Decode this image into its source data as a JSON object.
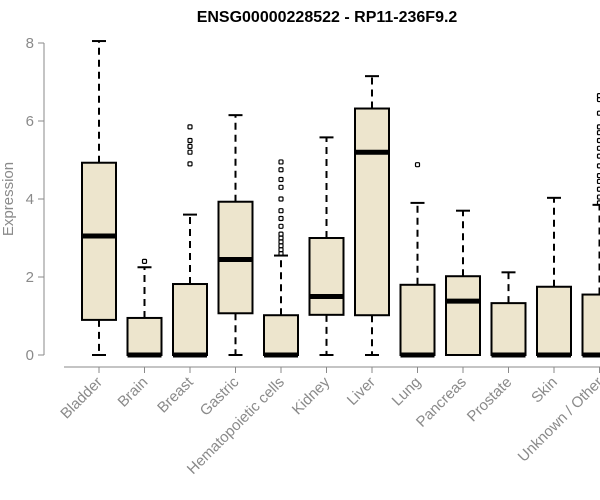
{
  "chart_data": {
    "type": "boxplot",
    "title": "ENSG00000228522 - RP11-236F9.2",
    "xlabel": "",
    "ylabel": "Expression",
    "ylim": [
      0,
      8
    ],
    "yticks": [
      0,
      2,
      4,
      6,
      8
    ],
    "grid": false,
    "categories": [
      "Bladder",
      "Brain",
      "Breast",
      "Gastric",
      "Hematopoietic cells",
      "Kidney",
      "Liver",
      "Lung",
      "Pancreas",
      "Prostate",
      "Skin",
      "Unknown / Other"
    ],
    "boxes": [
      {
        "min": 0,
        "q1": 0.9,
        "median": 3.05,
        "q3": 4.93,
        "max": 8.05,
        "outliers": []
      },
      {
        "min": 0,
        "q1": 0,
        "median": 0,
        "q3": 0.95,
        "max": 2.25,
        "outliers": [
          2.4
        ]
      },
      {
        "min": 0,
        "q1": 0,
        "median": 0,
        "q3": 1.82,
        "max": 3.6,
        "outliers": [
          4.9,
          5.2,
          5.35,
          5.5,
          5.85
        ]
      },
      {
        "min": 0,
        "q1": 1.07,
        "median": 2.45,
        "q3": 3.93,
        "max": 6.15,
        "outliers": []
      },
      {
        "min": 0,
        "q1": 0,
        "median": 0,
        "q3": 1.02,
        "max": 2.55,
        "outliers": [
          2.6,
          2.7,
          2.8,
          2.9,
          3.0,
          3.1,
          3.3,
          3.5,
          3.7,
          4.0,
          4.3,
          4.5,
          4.75,
          4.95
        ]
      },
      {
        "min": 0,
        "q1": 1.03,
        "median": 1.5,
        "q3": 3.0,
        "max": 5.58,
        "outliers": []
      },
      {
        "min": 0,
        "q1": 1.02,
        "median": 5.2,
        "q3": 6.32,
        "max": 7.15,
        "outliers": []
      },
      {
        "min": 0,
        "q1": 0,
        "median": 0,
        "q3": 1.8,
        "max": 3.9,
        "outliers": [
          4.88
        ]
      },
      {
        "min": 0,
        "q1": 0,
        "median": 1.38,
        "q3": 2.02,
        "max": 3.7,
        "outliers": []
      },
      {
        "min": 0,
        "q1": 0,
        "median": 0,
        "q3": 1.33,
        "max": 2.12,
        "outliers": []
      },
      {
        "min": 0,
        "q1": 0,
        "median": 0,
        "q3": 1.75,
        "max": 4.03,
        "outliers": []
      },
      {
        "min": 0,
        "q1": 0,
        "median": 0,
        "q3": 1.55,
        "max": 3.85,
        "outliers": [
          3.9,
          4.05,
          4.25,
          4.45,
          4.6,
          4.85,
          5.1,
          5.3,
          5.5,
          5.7,
          5.85,
          6.2,
          6.55,
          6.65
        ]
      }
    ]
  },
  "colors": {
    "box_fill": "#ede5cd",
    "box_stroke": "#000000",
    "axis": "#8a8a8a",
    "label_text": "#8a8a8a"
  }
}
